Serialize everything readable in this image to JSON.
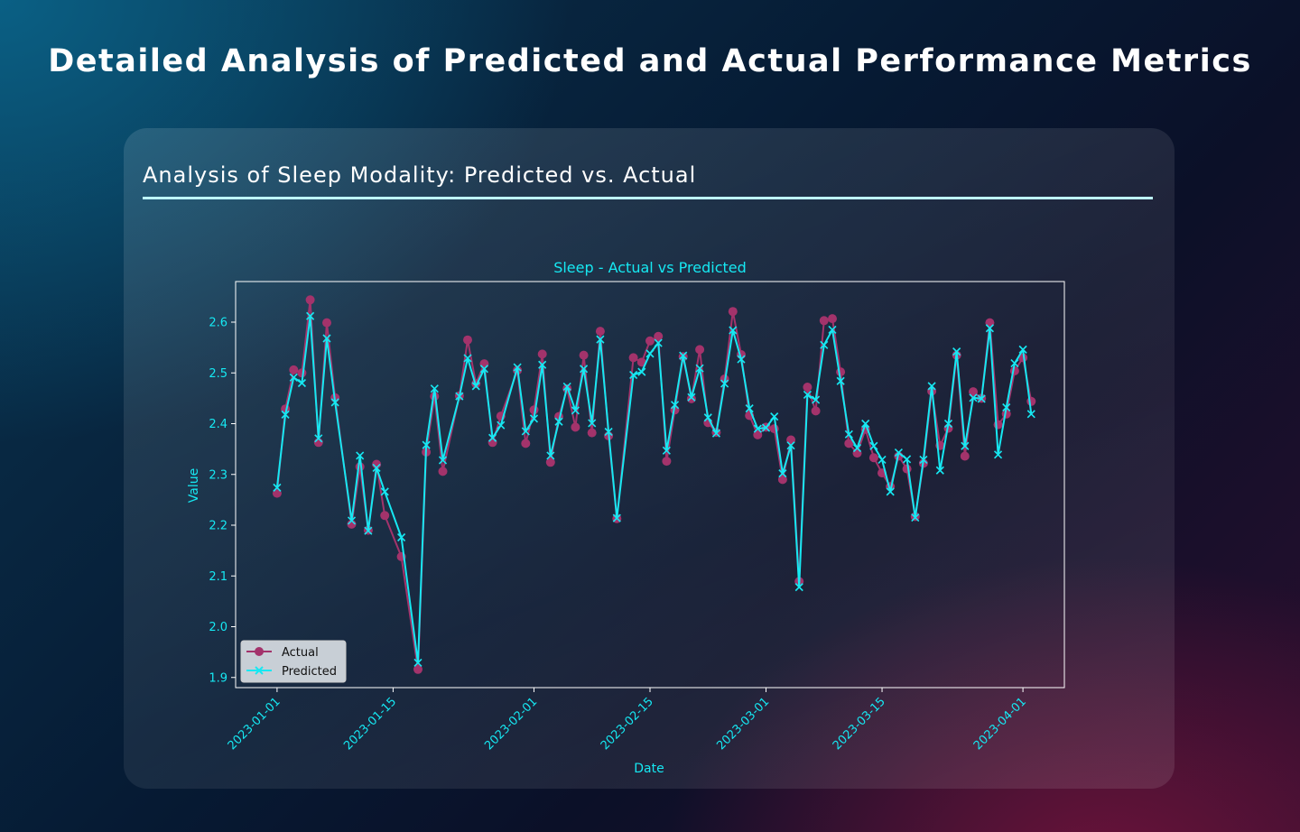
{
  "page": {
    "title": "Detailed Analysis of Predicted and Actual Performance Metrics"
  },
  "card": {
    "title": "Analysis of Sleep Modality: Predicted vs. Actual"
  },
  "colors": {
    "actual": "#a3336b",
    "predicted": "#16e8f2",
    "text": "#16e8f2",
    "rule": "#bdf6ff"
  },
  "chart_data": {
    "type": "line",
    "title": "Sleep - Actual vs Predicted",
    "xlabel": "Date",
    "ylabel": "Value",
    "x_range": [
      "2022-12-27",
      "2023-04-06"
    ],
    "ylim": [
      1.88,
      2.68
    ],
    "y_ticks": [
      "1.9",
      "2.0",
      "2.1",
      "2.2",
      "2.3",
      "2.4",
      "2.5",
      "2.6"
    ],
    "x_ticks": [
      "2023-01-01",
      "2023-01-15",
      "2023-02-01",
      "2023-02-15",
      "2023-03-01",
      "2023-03-15",
      "2023-04-01"
    ],
    "legend_position": "lower-left",
    "grid": false,
    "series": [
      {
        "name": "Actual",
        "marker": "circle",
        "color": "#a3336b",
        "points": [
          [
            "2023-01-01",
            2.263
          ],
          [
            "2023-01-02",
            2.429
          ],
          [
            "2023-01-03",
            2.506
          ],
          [
            "2023-01-04",
            2.5
          ],
          [
            "2023-01-05",
            2.644
          ],
          [
            "2023-01-06",
            2.363
          ],
          [
            "2023-01-07",
            2.599
          ],
          [
            "2023-01-08",
            2.451
          ],
          [
            "2023-01-10",
            2.202
          ],
          [
            "2023-01-11",
            2.315
          ],
          [
            "2023-01-12",
            2.19
          ],
          [
            "2023-01-13",
            2.32
          ],
          [
            "2023-01-14",
            2.219
          ],
          [
            "2023-01-16",
            2.138
          ],
          [
            "2023-01-18",
            1.916
          ],
          [
            "2023-01-19",
            2.344
          ],
          [
            "2023-01-20",
            2.454
          ],
          [
            "2023-01-21",
            2.306
          ],
          [
            "2023-01-23",
            2.455
          ],
          [
            "2023-01-24",
            2.565
          ],
          [
            "2023-01-25",
            2.479
          ],
          [
            "2023-01-26",
            2.518
          ],
          [
            "2023-01-27",
            2.363
          ],
          [
            "2023-01-28",
            2.415
          ],
          [
            "2023-01-30",
            2.505
          ],
          [
            "2023-01-31",
            2.361
          ],
          [
            "2023-02-01",
            2.427
          ],
          [
            "2023-02-02",
            2.537
          ],
          [
            "2023-02-03",
            2.324
          ],
          [
            "2023-02-04",
            2.414
          ],
          [
            "2023-02-05",
            2.469
          ],
          [
            "2023-02-06",
            2.393
          ],
          [
            "2023-02-07",
            2.535
          ],
          [
            "2023-02-08",
            2.382
          ],
          [
            "2023-02-09",
            2.582
          ],
          [
            "2023-02-10",
            2.376
          ],
          [
            "2023-02-11",
            2.213
          ],
          [
            "2023-02-13",
            2.53
          ],
          [
            "2023-02-14",
            2.521
          ],
          [
            "2023-02-15",
            2.563
          ],
          [
            "2023-02-16",
            2.572
          ],
          [
            "2023-02-17",
            2.326
          ],
          [
            "2023-02-18",
            2.427
          ],
          [
            "2023-02-19",
            2.532
          ],
          [
            "2023-02-20",
            2.449
          ],
          [
            "2023-02-21",
            2.546
          ],
          [
            "2023-02-22",
            2.402
          ],
          [
            "2023-02-23",
            2.383
          ],
          [
            "2023-02-24",
            2.488
          ],
          [
            "2023-02-25",
            2.621
          ],
          [
            "2023-02-26",
            2.536
          ],
          [
            "2023-02-27",
            2.416
          ],
          [
            "2023-02-28",
            2.378
          ],
          [
            "2023-03-01",
            2.393
          ],
          [
            "2023-03-02",
            2.39
          ],
          [
            "2023-03-03",
            2.29
          ],
          [
            "2023-03-04",
            2.368
          ],
          [
            "2023-03-05",
            2.089
          ],
          [
            "2023-03-06",
            2.472
          ],
          [
            "2023-03-07",
            2.425
          ],
          [
            "2023-03-08",
            2.603
          ],
          [
            "2023-03-09",
            2.607
          ],
          [
            "2023-03-10",
            2.502
          ],
          [
            "2023-03-11",
            2.361
          ],
          [
            "2023-03-12",
            2.342
          ],
          [
            "2023-03-13",
            2.389
          ],
          [
            "2023-03-14",
            2.333
          ],
          [
            "2023-03-15",
            2.303
          ],
          [
            "2023-03-16",
            2.276
          ],
          [
            "2023-03-17",
            2.336
          ],
          [
            "2023-03-18",
            2.311
          ],
          [
            "2023-03-19",
            2.217
          ],
          [
            "2023-03-20",
            2.322
          ],
          [
            "2023-03-21",
            2.464
          ],
          [
            "2023-03-22",
            2.357
          ],
          [
            "2023-03-23",
            2.391
          ],
          [
            "2023-03-24",
            2.535
          ],
          [
            "2023-03-25",
            2.336
          ],
          [
            "2023-03-26",
            2.463
          ],
          [
            "2023-03-27",
            2.45
          ],
          [
            "2023-03-28",
            2.599
          ],
          [
            "2023-03-29",
            2.398
          ],
          [
            "2023-03-30",
            2.419
          ],
          [
            "2023-03-31",
            2.504
          ],
          [
            "2023-04-01",
            2.53
          ],
          [
            "2023-04-02",
            2.444
          ]
        ]
      },
      {
        "name": "Predicted",
        "marker": "x",
        "color": "#16e8f2",
        "points": [
          [
            "2023-01-01",
            2.274
          ],
          [
            "2023-01-02",
            2.418
          ],
          [
            "2023-01-03",
            2.491
          ],
          [
            "2023-01-04",
            2.48
          ],
          [
            "2023-01-05",
            2.612
          ],
          [
            "2023-01-06",
            2.371
          ],
          [
            "2023-01-07",
            2.568
          ],
          [
            "2023-01-08",
            2.442
          ],
          [
            "2023-01-10",
            2.209
          ],
          [
            "2023-01-11",
            2.337
          ],
          [
            "2023-01-12",
            2.189
          ],
          [
            "2023-01-13",
            2.313
          ],
          [
            "2023-01-14",
            2.266
          ],
          [
            "2023-01-16",
            2.176
          ],
          [
            "2023-01-18",
            1.929
          ],
          [
            "2023-01-19",
            2.358
          ],
          [
            "2023-01-20",
            2.469
          ],
          [
            "2023-01-21",
            2.328
          ],
          [
            "2023-01-23",
            2.454
          ],
          [
            "2023-01-24",
            2.529
          ],
          [
            "2023-01-25",
            2.474
          ],
          [
            "2023-01-26",
            2.508
          ],
          [
            "2023-01-27",
            2.372
          ],
          [
            "2023-01-28",
            2.397
          ],
          [
            "2023-01-30",
            2.511
          ],
          [
            "2023-01-31",
            2.385
          ],
          [
            "2023-02-01",
            2.41
          ],
          [
            "2023-02-02",
            2.516
          ],
          [
            "2023-02-03",
            2.337
          ],
          [
            "2023-02-04",
            2.404
          ],
          [
            "2023-02-05",
            2.473
          ],
          [
            "2023-02-06",
            2.426
          ],
          [
            "2023-02-07",
            2.508
          ],
          [
            "2023-02-08",
            2.401
          ],
          [
            "2023-02-09",
            2.566
          ],
          [
            "2023-02-10",
            2.384
          ],
          [
            "2023-02-11",
            2.214
          ],
          [
            "2023-02-13",
            2.496
          ],
          [
            "2023-02-14",
            2.502
          ],
          [
            "2023-02-15",
            2.538
          ],
          [
            "2023-02-16",
            2.559
          ],
          [
            "2023-02-17",
            2.347
          ],
          [
            "2023-02-18",
            2.437
          ],
          [
            "2023-02-19",
            2.534
          ],
          [
            "2023-02-20",
            2.452
          ],
          [
            "2023-02-21",
            2.509
          ],
          [
            "2023-02-22",
            2.412
          ],
          [
            "2023-02-23",
            2.381
          ],
          [
            "2023-02-24",
            2.479
          ],
          [
            "2023-02-25",
            2.584
          ],
          [
            "2023-02-26",
            2.527
          ],
          [
            "2023-02-27",
            2.43
          ],
          [
            "2023-02-28",
            2.39
          ],
          [
            "2023-03-01",
            2.392
          ],
          [
            "2023-03-02",
            2.414
          ],
          [
            "2023-03-03",
            2.302
          ],
          [
            "2023-03-04",
            2.357
          ],
          [
            "2023-03-05",
            2.078
          ],
          [
            "2023-03-06",
            2.457
          ],
          [
            "2023-03-07",
            2.447
          ],
          [
            "2023-03-08",
            2.555
          ],
          [
            "2023-03-09",
            2.585
          ],
          [
            "2023-03-10",
            2.484
          ],
          [
            "2023-03-11",
            2.379
          ],
          [
            "2023-03-12",
            2.352
          ],
          [
            "2023-03-13",
            2.4
          ],
          [
            "2023-03-14",
            2.356
          ],
          [
            "2023-03-15",
            2.329
          ],
          [
            "2023-03-16",
            2.266
          ],
          [
            "2023-03-17",
            2.343
          ],
          [
            "2023-03-18",
            2.33
          ],
          [
            "2023-03-19",
            2.215
          ],
          [
            "2023-03-20",
            2.329
          ],
          [
            "2023-03-21",
            2.474
          ],
          [
            "2023-03-22",
            2.308
          ],
          [
            "2023-03-23",
            2.4
          ],
          [
            "2023-03-24",
            2.542
          ],
          [
            "2023-03-25",
            2.356
          ],
          [
            "2023-03-26",
            2.451
          ],
          [
            "2023-03-27",
            2.449
          ],
          [
            "2023-03-28",
            2.588
          ],
          [
            "2023-03-29",
            2.339
          ],
          [
            "2023-03-30",
            2.432
          ],
          [
            "2023-03-31",
            2.519
          ],
          [
            "2023-04-01",
            2.546
          ],
          [
            "2023-04-02",
            2.419
          ]
        ]
      }
    ]
  }
}
